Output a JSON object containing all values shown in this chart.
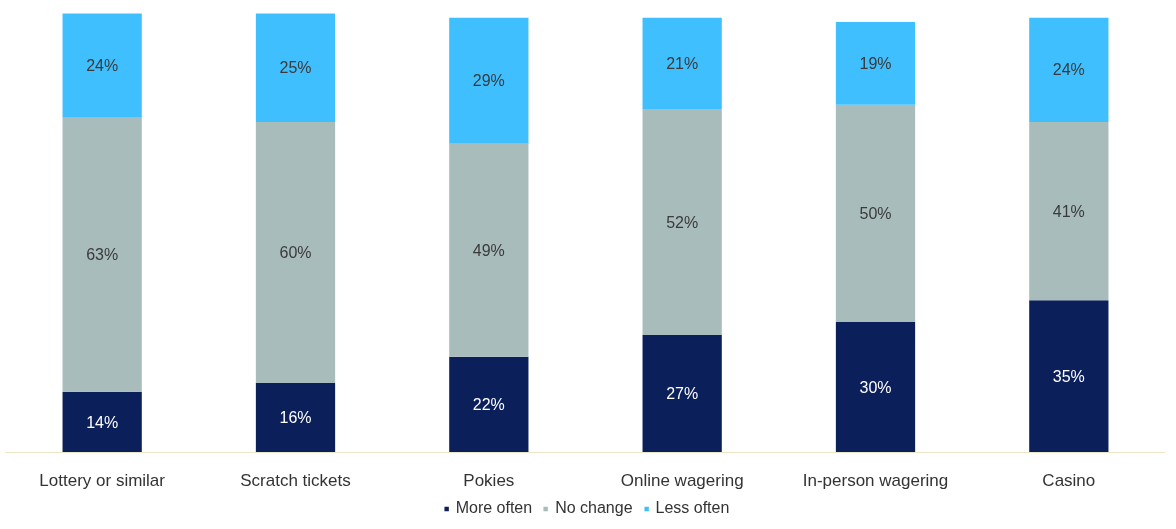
{
  "chart_data": {
    "type": "bar",
    "stacked": true,
    "tick_labels": "x",
    "legend": "bottom",
    "grid": false,
    "categories": [
      "Lottery or similar",
      "Scratch tickets",
      "Pokies",
      "Online wagering",
      "In-person wagering",
      "Casino"
    ],
    "series": [
      {
        "name": "More often",
        "color": "#0b1f5b",
        "values": [
          14,
          16,
          22,
          27,
          30,
          35
        ],
        "value_labels": [
          "14%",
          "16%",
          "22%",
          "27%",
          "30%",
          "35%"
        ]
      },
      {
        "name": "No change",
        "color": "#a9bcbc",
        "values": [
          63,
          60,
          49,
          52,
          50,
          41
        ],
        "value_labels": [
          "63%",
          "60%",
          "49%",
          "52%",
          "50%",
          "41%"
        ]
      },
      {
        "name": "Less often",
        "color": "#40bfff",
        "values": [
          24,
          25,
          29,
          21,
          19,
          24
        ],
        "value_labels": [
          "24%",
          "25%",
          "29%",
          "21%",
          "19%",
          "24%"
        ]
      }
    ]
  }
}
